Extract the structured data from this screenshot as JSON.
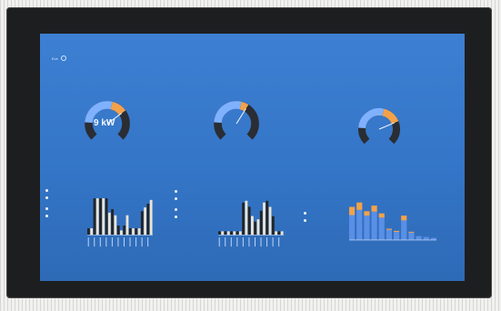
{
  "dashboard": {
    "logo_text": "Eve",
    "title": "",
    "subtitle": ""
  },
  "gauges": [
    {
      "title": "",
      "value": "9 kW",
      "min": "",
      "max": "",
      "level": 0.7
    },
    {
      "title": "",
      "value": "",
      "min": "",
      "max": "",
      "level": 0.62
    },
    {
      "title": "",
      "value": "",
      "min": "",
      "max": "",
      "level": 0.75
    }
  ],
  "panels": [
    {
      "title": "",
      "subtitle": "",
      "legend": [
        "",
        "",
        "",
        ""
      ]
    },
    {
      "title": "",
      "subtitle": "",
      "legend": [
        "",
        "",
        "",
        ""
      ]
    },
    {
      "title": "",
      "subtitle": "",
      "legend": [
        "",
        ""
      ]
    }
  ],
  "colors": {
    "screen": "#3a7bd0",
    "gauge_track": "#2a2d33",
    "gauge_blue": "#7fb1ff",
    "gauge_orange": "#f3a24b",
    "bar_dark": "#232528",
    "bar_light": "#e8e4d7",
    "bar_blue": "#5a8fe6",
    "bar_orange": "#f2a24a"
  },
  "icons": {
    "brand": "circle-logo-icon"
  }
}
